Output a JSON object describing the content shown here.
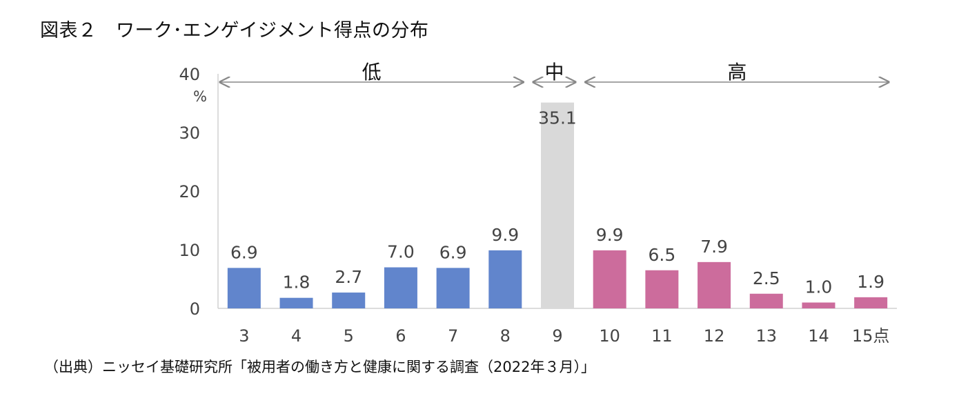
{
  "title": "図表２　ワーク･エンゲイジメント得点の分布",
  "source": "（出典）ニッセイ基礎研究所「被用者の働き方と健康に関する調査（2022年３月）」",
  "chart_data": {
    "type": "bar",
    "title": "図表２　ワーク･エンゲイジメント得点の分布",
    "xlabel": "点",
    "ylabel": "%",
    "ylim": [
      0,
      40
    ],
    "yticks": [
      "0",
      "10",
      "20",
      "30",
      "40"
    ],
    "categories": [
      "3",
      "4",
      "5",
      "6",
      "7",
      "8",
      "9",
      "10",
      "11",
      "12",
      "13",
      "14",
      "15点"
    ],
    "values": [
      6.9,
      1.8,
      2.7,
      7.0,
      6.9,
      9.9,
      35.1,
      9.9,
      6.5,
      7.9,
      2.5,
      1.0,
      1.9
    ],
    "value_labels": [
      "6.9",
      "1.8",
      "2.7",
      "7.0",
      "6.9",
      "9.9",
      "35.1",
      "9.9",
      "6.5",
      "7.9",
      "2.5",
      "1.0",
      "1.9"
    ],
    "groups": [
      {
        "name": "低",
        "categories": [
          "3",
          "4",
          "5",
          "6",
          "7",
          "8"
        ],
        "color": "#6185cc"
      },
      {
        "name": "中",
        "categories": [
          "9"
        ],
        "color": "#d9d9d9"
      },
      {
        "name": "高",
        "categories": [
          "10",
          "11",
          "12",
          "13",
          "14",
          "15点"
        ],
        "color": "#cc6c9c"
      }
    ],
    "grid": false,
    "legend": "none"
  }
}
